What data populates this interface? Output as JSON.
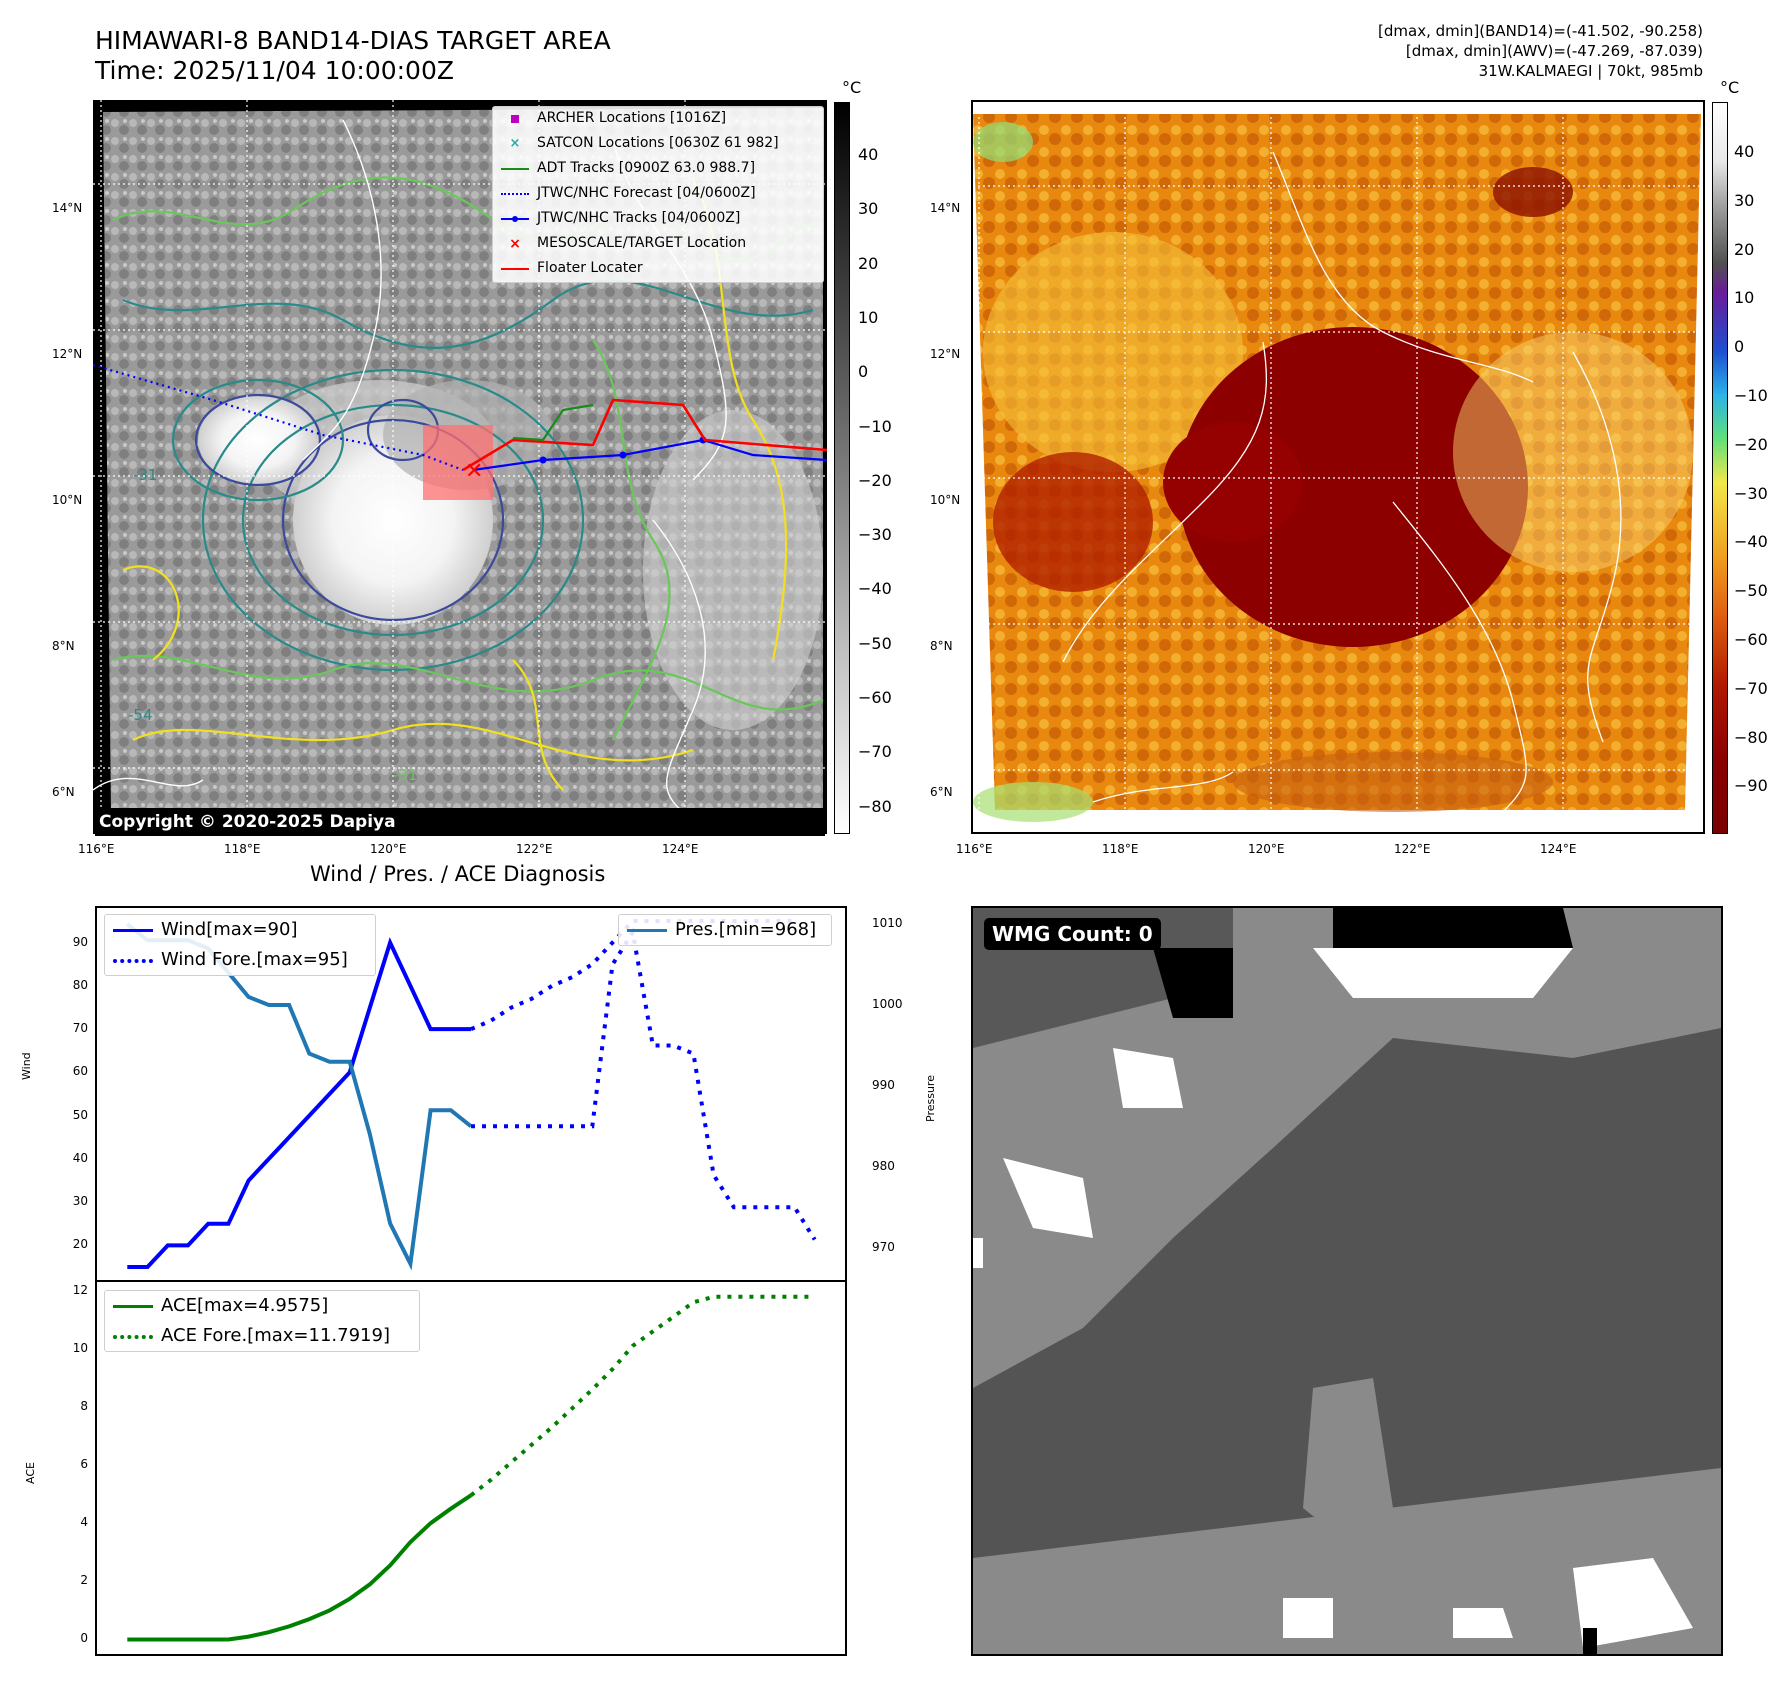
{
  "header": {
    "title_line1": "HIMAWARI-8 BAND14-DIAS TARGET AREA",
    "title_line2": "Time: 2025/11/04 10:00:00Z",
    "meta_line1": "[dmax, dmin](BAND14)=(-41.502, -90.258)",
    "meta_line2": "[dmax, dmin](AWV)=(-47.269, -87.039)",
    "meta_line3": "31W.KALMAEGI | 70kt, 985mb"
  },
  "map": {
    "lat_ticks": [
      "14°N",
      "12°N",
      "10°N",
      "8°N",
      "6°N"
    ],
    "lon_ticks": [
      "116°E",
      "118°E",
      "120°E",
      "122°E",
      "124°E"
    ],
    "copyright": "Copyright © 2020-2025 Dapiya",
    "contour_labels": [
      "-31",
      "-54",
      "-31"
    ]
  },
  "map_legend": [
    {
      "label": "ARCHER Locations [1016Z]",
      "color": "#c000c0",
      "symbol": "square"
    },
    {
      "label": "SATCON Locations [0630Z 61 982]",
      "color": "#20b0a0",
      "symbol": "x"
    },
    {
      "label": "ADT Tracks [0900Z 63.0 988.7]",
      "color": "#1a8a1a",
      "symbol": "line"
    },
    {
      "label": "JTWC/NHC Forecast [04/0600Z]",
      "color": "#0000ff",
      "symbol": "dotted"
    },
    {
      "label": "JTWC/NHC Tracks [04/0600Z]",
      "color": "#0000ff",
      "symbol": "line-dot"
    },
    {
      "label": "MESOSCALE/TARGET Location",
      "color": "#ff0000",
      "symbol": "x"
    },
    {
      "label": "Floater Locater",
      "color": "#ff0000",
      "symbol": "line"
    }
  ],
  "colorbar_gray": {
    "unit": "°C",
    "ticks": [
      "40",
      "30",
      "20",
      "10",
      "0",
      "−10",
      "−20",
      "−30",
      "−40",
      "−50",
      "−60",
      "−70",
      "−80"
    ]
  },
  "colorbar_color": {
    "unit": "°C",
    "ticks": [
      "40",
      "30",
      "20",
      "10",
      "0",
      "−10",
      "−20",
      "−30",
      "−40",
      "−50",
      "−60",
      "−70",
      "−80",
      "−90"
    ]
  },
  "wmg": {
    "badge": "WMG Count: 0"
  },
  "chart_data": [
    {
      "type": "line",
      "title": "Wind / Pres. / ACE Diagnosis",
      "ylabel": "Wind",
      "y2label": "Pressure",
      "ylim": [
        12,
        98
      ],
      "y2lim": [
        966,
        1012
      ],
      "yticks": [
        20,
        30,
        40,
        50,
        60,
        70,
        80,
        90
      ],
      "y2ticks": [
        970,
        980,
        990,
        1000,
        1010
      ],
      "legend_left": [
        "Wind[max=90]",
        "Wind Fore.[max=95]"
      ],
      "legend_right": [
        "Pres.[min=968]"
      ],
      "series": [
        {
          "name": "Wind[max=90]",
          "color": "#0000ff",
          "style": "solid",
          "x": [
            0,
            1,
            2,
            3,
            4,
            5,
            6,
            7,
            8,
            9,
            10,
            11,
            12,
            13,
            14,
            15,
            16,
            17
          ],
          "values": [
            15,
            15,
            20,
            20,
            25,
            25,
            35,
            40,
            45,
            50,
            55,
            60,
            75,
            90,
            80,
            70,
            70,
            70
          ]
        },
        {
          "name": "Wind Fore.[max=95]",
          "color": "#0000ff",
          "style": "dotted",
          "x": [
            17,
            18,
            19,
            20,
            21,
            22,
            23,
            24,
            25,
            26,
            27,
            28,
            29,
            30,
            31,
            32,
            33
          ],
          "values": [
            70,
            72,
            75,
            77,
            80,
            82,
            85,
            90,
            95,
            95,
            95,
            95,
            95,
            95,
            95,
            95,
            95
          ]
        },
        {
          "name": "Pres.[min=968]",
          "color": "#1f77b4",
          "style": "solid",
          "axis": "right",
          "x": [
            0,
            1,
            2,
            3,
            4,
            5,
            6,
            7,
            8,
            9,
            10,
            11,
            12,
            13,
            14,
            15,
            16,
            17
          ],
          "values": [
            1010,
            1008,
            1008,
            1008,
            1007,
            1004,
            1001,
            1000,
            1000,
            994,
            993,
            993,
            984,
            973,
            968,
            987,
            987,
            985
          ]
        },
        {
          "name": "",
          "color": "#0000ff",
          "style": "dotted",
          "axis": "right",
          "x": [
            17,
            18,
            19,
            20,
            21,
            22,
            23,
            24,
            25,
            26,
            27,
            28,
            29,
            30,
            31,
            32,
            33,
            34
          ],
          "values": [
            985,
            985,
            985,
            985,
            985,
            985,
            985,
            1005,
            1009,
            995,
            995,
            994,
            979,
            975,
            975,
            975,
            975,
            971
          ]
        }
      ],
      "xlim": [
        -1.5,
        35.5
      ]
    },
    {
      "type": "line",
      "title": "",
      "ylabel": "ACE",
      "ylim": [
        -0.5,
        12.3
      ],
      "yticks": [
        0,
        2,
        4,
        6,
        8,
        10,
        12
      ],
      "legend": [
        "ACE[max=4.9575]",
        "ACE Fore.[max=11.7919]"
      ],
      "series": [
        {
          "name": "ACE[max=4.9575]",
          "color": "#008000",
          "style": "solid",
          "x": [
            0,
            1,
            2,
            3,
            4,
            5,
            6,
            7,
            8,
            9,
            10,
            11,
            12,
            13,
            14,
            15,
            16,
            17
          ],
          "values": [
            0,
            0,
            0,
            0,
            0,
            0,
            0.1,
            0.25,
            0.45,
            0.7,
            1.0,
            1.4,
            1.9,
            2.55,
            3.35,
            4.0,
            4.5,
            4.96
          ]
        },
        {
          "name": "ACE Fore.[max=11.7919]",
          "color": "#008000",
          "style": "dotted",
          "x": [
            17,
            18,
            19,
            20,
            21,
            22,
            23,
            24,
            25,
            26,
            27,
            28,
            29,
            30,
            31,
            32,
            33,
            34
          ],
          "values": [
            4.96,
            5.5,
            6.1,
            6.7,
            7.3,
            7.95,
            8.6,
            9.3,
            10.1,
            10.6,
            11.1,
            11.6,
            11.79,
            11.79,
            11.79,
            11.79,
            11.79,
            11.79
          ]
        }
      ],
      "xlim": [
        -1.5,
        35.5
      ]
    }
  ]
}
